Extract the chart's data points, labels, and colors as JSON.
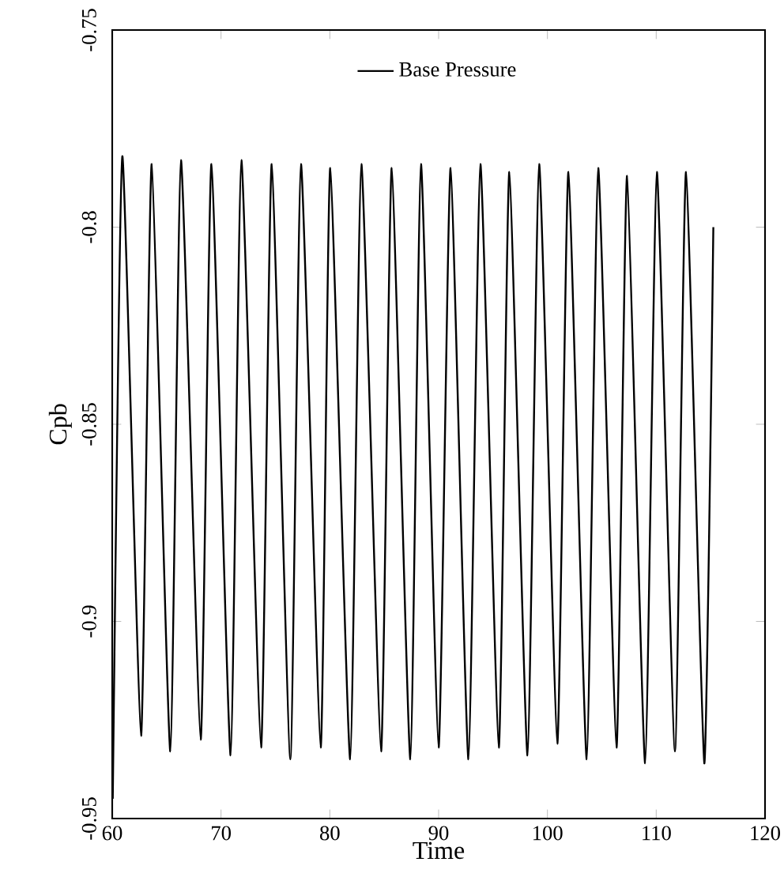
{
  "chart_data": {
    "type": "line",
    "xlabel": "Time",
    "ylabel": "Cpb",
    "x": [
      60.05,
      60.93,
      62.65,
      63.63,
      65.34,
      66.32,
      68.13,
      69.12,
      70.88,
      71.87,
      73.68,
      74.66,
      76.37,
      77.35,
      79.16,
      80.04,
      81.87,
      82.9,
      84.71,
      85.69,
      87.4,
      88.38,
      90.0,
      91.1,
      92.74,
      93.84,
      95.53,
      96.5,
      98.17,
      99.24,
      100.91,
      101.93,
      103.61,
      104.67,
      106.35,
      107.32,
      108.98,
      110.06,
      111.72,
      112.74,
      114.42,
      115.25
    ],
    "series": [
      {
        "name": "Base Pressure",
        "color": "#000000",
        "values": [
          -0.945,
          -0.782,
          -0.929,
          -0.784,
          -0.933,
          -0.783,
          -0.93,
          -0.784,
          -0.934,
          -0.783,
          -0.932,
          -0.784,
          -0.935,
          -0.784,
          -0.932,
          -0.785,
          -0.935,
          -0.784,
          -0.933,
          -0.785,
          -0.935,
          -0.784,
          -0.932,
          -0.785,
          -0.935,
          -0.784,
          -0.932,
          -0.786,
          -0.934,
          -0.784,
          -0.931,
          -0.786,
          -0.935,
          -0.785,
          -0.932,
          -0.787,
          -0.936,
          -0.786,
          -0.933,
          -0.786,
          -0.936,
          -0.8
        ]
      }
    ],
    "xlim": [
      60,
      120
    ],
    "ylim": [
      -0.95,
      -0.75
    ],
    "xticks": [
      60,
      70,
      80,
      90,
      100,
      110,
      120
    ],
    "yticks": [
      -0.95,
      -0.9,
      -0.85,
      -0.8,
      -0.75
    ],
    "legend": "top",
    "grid": false,
    "marker": "none",
    "line_style": "solid"
  }
}
